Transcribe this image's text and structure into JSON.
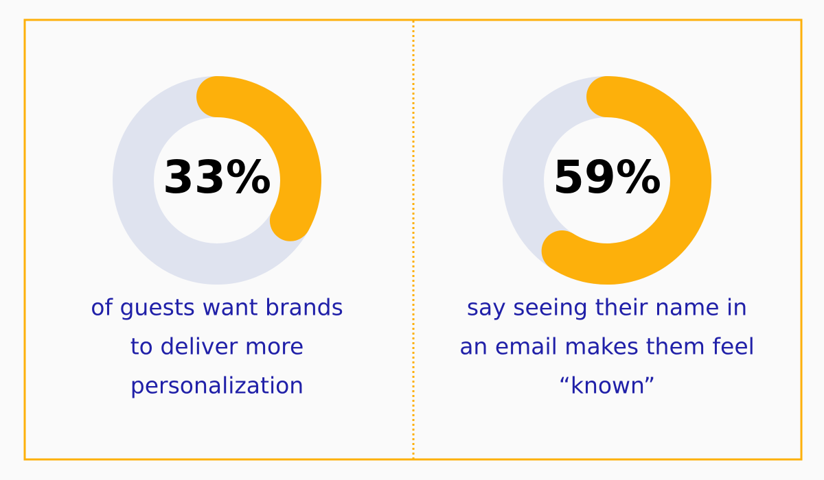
{
  "chart_data": [
    {
      "type": "donut",
      "values": [
        33
      ],
      "value_labels": [
        "33%"
      ],
      "color": "#fdb00b",
      "track_color": "#dfe3ef",
      "caption": [
        "of guests want brands",
        "to deliver more",
        "personalization"
      ]
    },
    {
      "type": "donut",
      "values": [
        59
      ],
      "value_labels": [
        "59%"
      ],
      "color": "#fdb00b",
      "track_color": "#dfe3ef",
      "caption": [
        "say seeing their name in",
        "an email makes them feel",
        "“known”"
      ]
    }
  ]
}
